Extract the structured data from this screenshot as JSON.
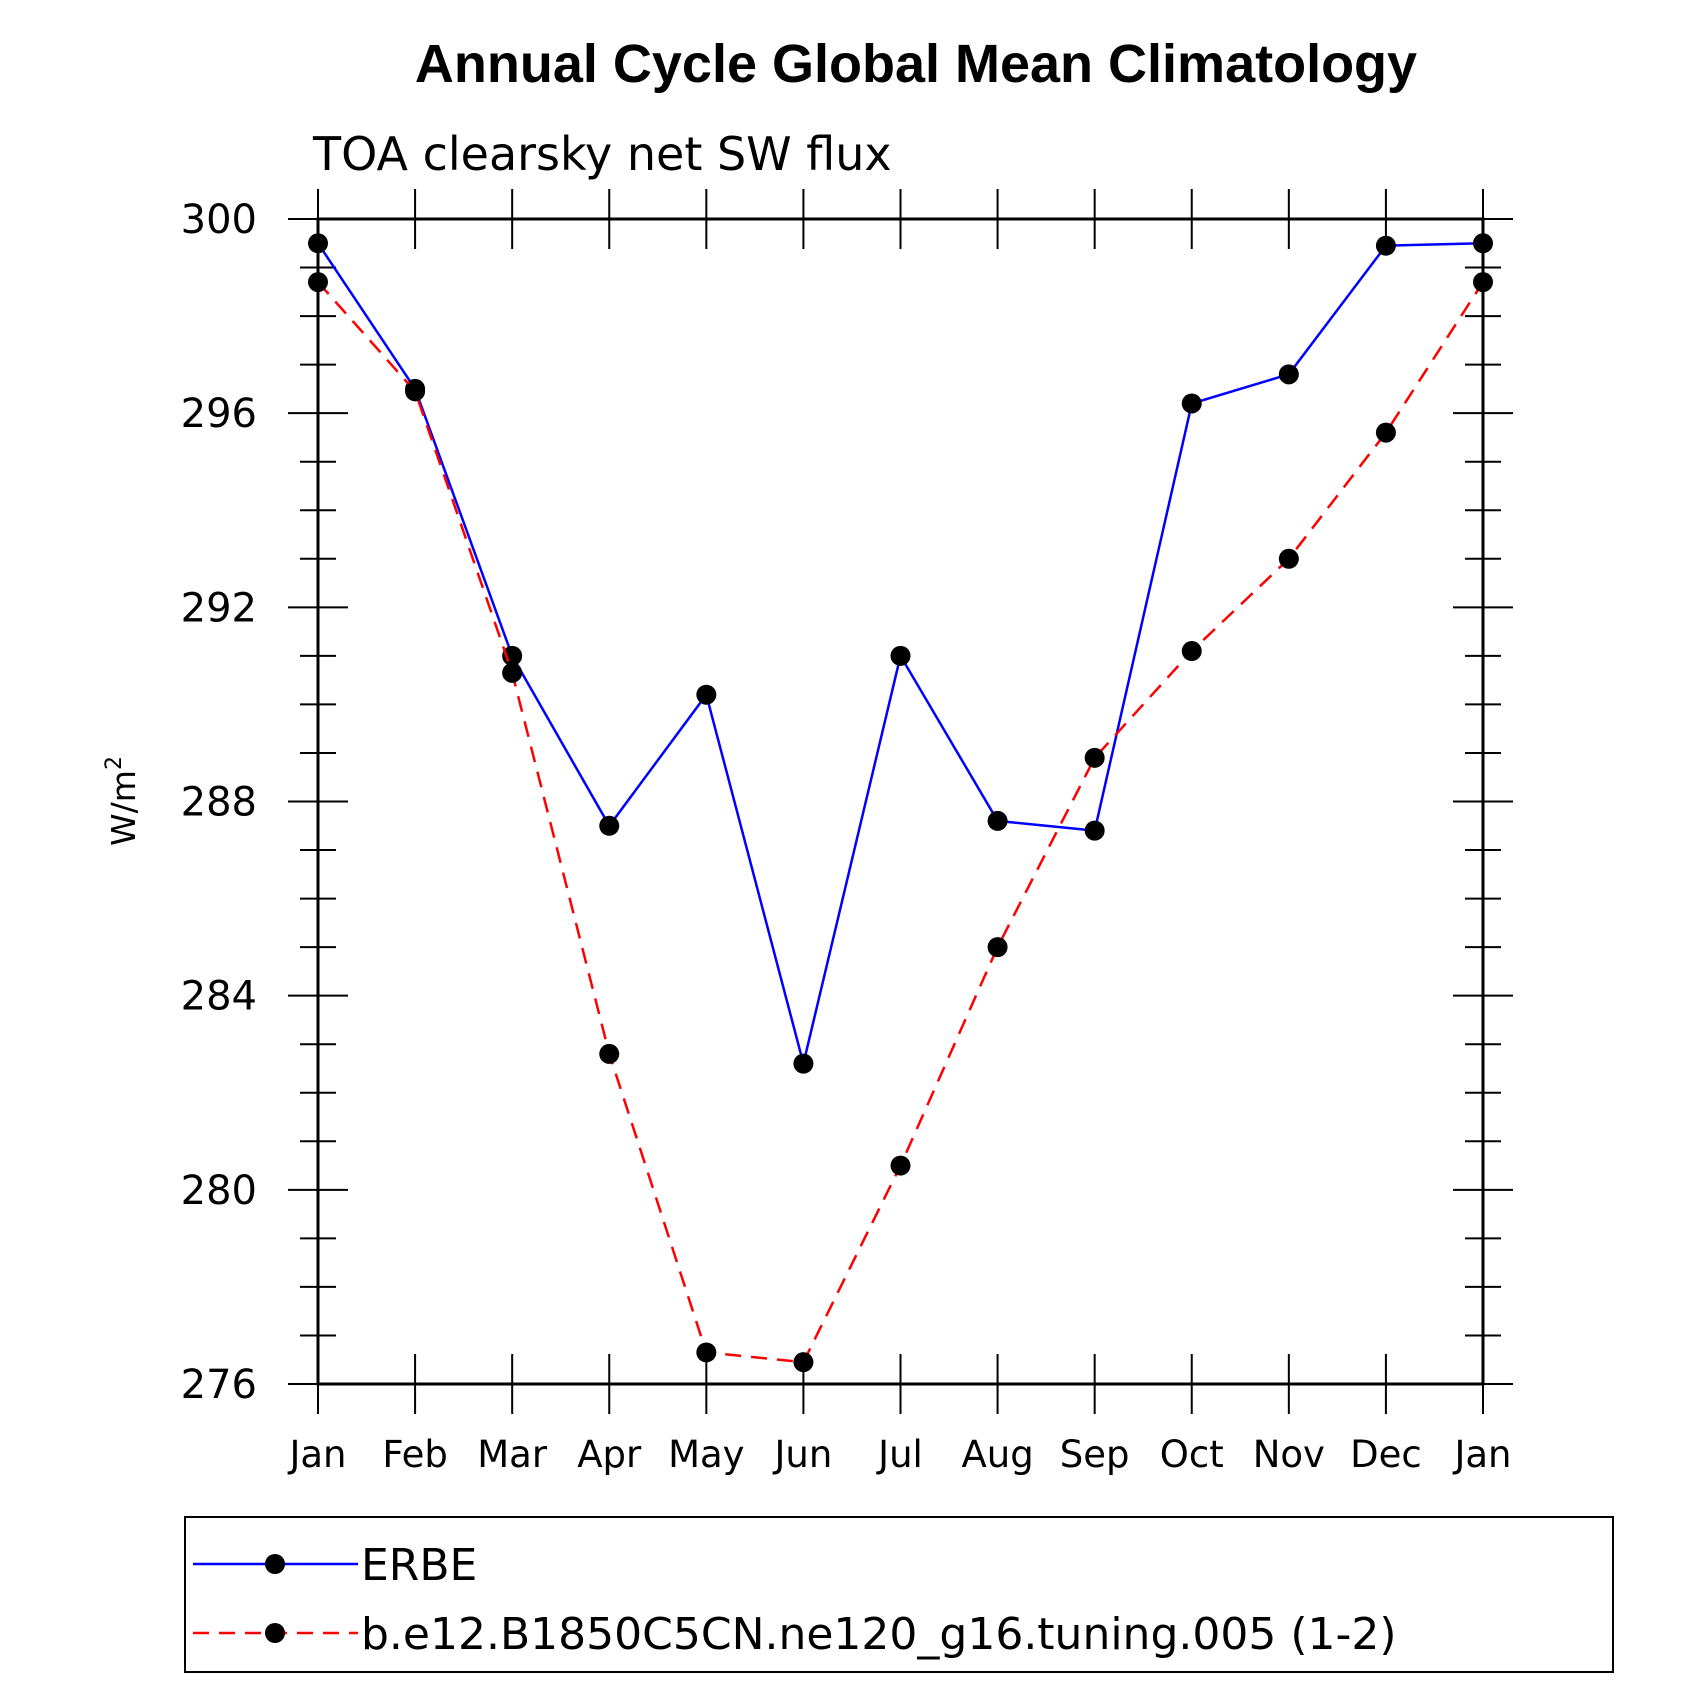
{
  "chart_data": {
    "type": "line",
    "title": "Annual Cycle Global Mean Climatology",
    "subtitle": "TOA clearsky net SW flux",
    "ylabel": "W/m",
    "ylabel_sup": "2",
    "xlabel": "",
    "categories": [
      "Jan",
      "Feb",
      "Mar",
      "Apr",
      "May",
      "Jun",
      "Jul",
      "Aug",
      "Sep",
      "Oct",
      "Nov",
      "Dec",
      "Jan"
    ],
    "ylim": [
      276,
      300
    ],
    "yticks": [
      "300",
      "296",
      "292",
      "288",
      "284",
      "280",
      "276"
    ],
    "grid": false,
    "legend_position": "bottom",
    "series": [
      {
        "name": "ERBE",
        "color": "#0000ff",
        "dash": "solid",
        "values": [
          299.5,
          296.5,
          291.0,
          287.5,
          290.2,
          282.6,
          291.0,
          287.6,
          287.4,
          296.2,
          296.8,
          299.45,
          299.5
        ]
      },
      {
        "name": "b.e12.B1850C5CN.ne120_g16.tuning.005 (1-2)",
        "color": "#ff0000",
        "dash": "dashed",
        "values": [
          298.7,
          296.45,
          290.65,
          282.8,
          276.65,
          276.45,
          280.5,
          285.0,
          288.9,
          291.1,
          293.0,
          295.6,
          298.7
        ]
      }
    ]
  }
}
